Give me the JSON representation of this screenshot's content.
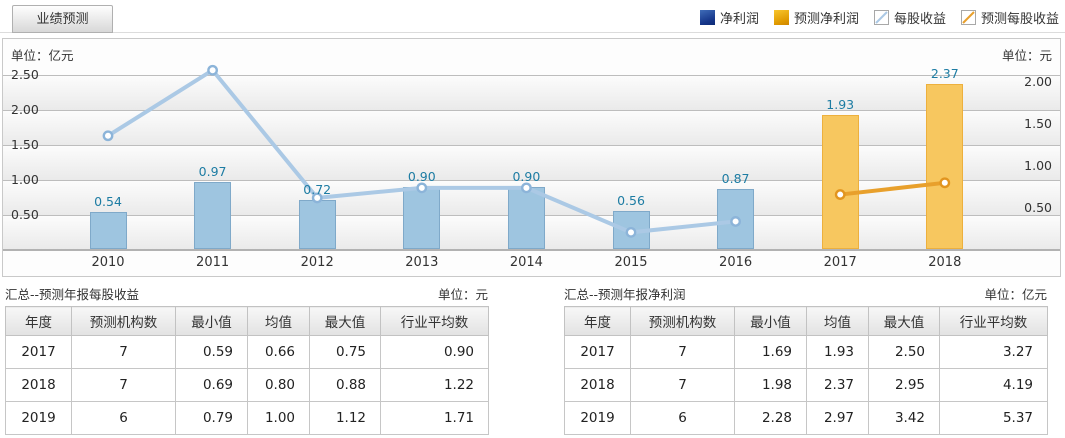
{
  "tab": {
    "label": "业绩预测"
  },
  "legend": {
    "items": [
      {
        "label": "净利润"
      },
      {
        "label": "预测净利润"
      },
      {
        "label": "每股收益"
      },
      {
        "label": "预测每股收益"
      }
    ]
  },
  "chart_data": {
    "type": "bar+line",
    "unit_left": "单位：亿元",
    "unit_right": "单位：元",
    "categories": [
      "2010",
      "2011",
      "2012",
      "2013",
      "2014",
      "2015",
      "2016",
      "2017",
      "2018"
    ],
    "left_axis": {
      "label": "单位：亿元",
      "ticks": [
        2.5,
        2.0,
        1.5,
        1.0,
        0.5
      ]
    },
    "right_axis": {
      "label": "单位：元",
      "ticks": [
        2.0,
        1.5,
        1.0,
        0.5
      ]
    },
    "bar_label_color": "#1d7ca3",
    "grid": true,
    "series": [
      {
        "key": "net-profit",
        "name": "净利润",
        "type": "bar",
        "axis": "left",
        "fill": "#9ec5e0",
        "border": "#7fa9c9",
        "values": [
          0.54,
          0.97,
          0.72,
          0.9,
          0.9,
          0.56,
          0.87,
          null,
          null
        ]
      },
      {
        "key": "forecast-net-profit",
        "name": "预测净利润",
        "type": "bar",
        "axis": "left",
        "fill": "#f7c75f",
        "border": "#edb03d",
        "values": [
          null,
          null,
          null,
          null,
          null,
          null,
          null,
          1.93,
          2.37
        ]
      },
      {
        "key": "eps",
        "name": "每股收益",
        "type": "line",
        "axis": "right",
        "stroke": "#abc9e5",
        "marker": "#8cb4d9",
        "values": [
          1.36,
          2.14,
          0.62,
          0.74,
          0.74,
          0.21,
          0.34,
          null,
          null
        ]
      },
      {
        "key": "forecast-eps",
        "name": "预测每股收益",
        "type": "line",
        "axis": "right",
        "stroke": "#e8a02c",
        "marker": "#e2951f",
        "values": [
          null,
          null,
          null,
          null,
          null,
          null,
          null,
          0.66,
          0.8
        ]
      }
    ]
  },
  "tables": [
    {
      "title": "汇总--预测年报每股收益",
      "unit": "单位：元",
      "headers": [
        "年度",
        "预测机构数",
        "最小值",
        "均值",
        "最大值",
        "行业平均数"
      ],
      "rows": [
        [
          "2017",
          "7",
          "0.59",
          "0.66",
          "0.75",
          "0.90"
        ],
        [
          "2018",
          "7",
          "0.69",
          "0.80",
          "0.88",
          "1.22"
        ],
        [
          "2019",
          "6",
          "0.79",
          "1.00",
          "1.12",
          "1.71"
        ]
      ]
    },
    {
      "title": "汇总--预测年报净利润",
      "unit": "单位：亿元",
      "headers": [
        "年度",
        "预测机构数",
        "最小值",
        "均值",
        "最大值",
        "行业平均数"
      ],
      "rows": [
        [
          "2017",
          "7",
          "1.69",
          "1.93",
          "2.50",
          "3.27"
        ],
        [
          "2018",
          "7",
          "1.98",
          "2.37",
          "2.95",
          "4.19"
        ],
        [
          "2019",
          "6",
          "2.28",
          "2.97",
          "3.42",
          "5.37"
        ]
      ]
    }
  ]
}
